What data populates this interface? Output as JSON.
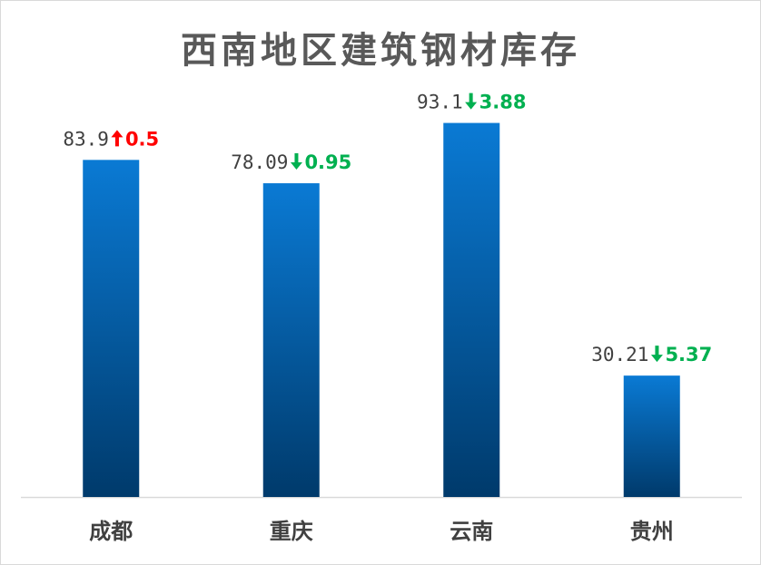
{
  "chart_data": {
    "type": "bar",
    "title": "西南地区建筑钢材库存",
    "categories": [
      "成都",
      "重庆",
      "云南",
      "贵州"
    ],
    "values": [
      83.9,
      78.09,
      93.1,
      30.21
    ],
    "value_labels": [
      "83.9",
      "78.09",
      "93.1",
      "30.21"
    ],
    "changes": [
      {
        "direction": "up",
        "text": "0.5",
        "color": "#ff0000"
      },
      {
        "direction": "down",
        "text": "0.95",
        "color": "#00b050"
      },
      {
        "direction": "down",
        "text": "3.88",
        "color": "#00b050"
      },
      {
        "direction": "down",
        "text": "5.37",
        "color": "#00b050"
      }
    ],
    "ylim": [
      0,
      110
    ],
    "grid": false,
    "bar_gradient": [
      "#0a7ad4",
      "#003a6b"
    ]
  }
}
